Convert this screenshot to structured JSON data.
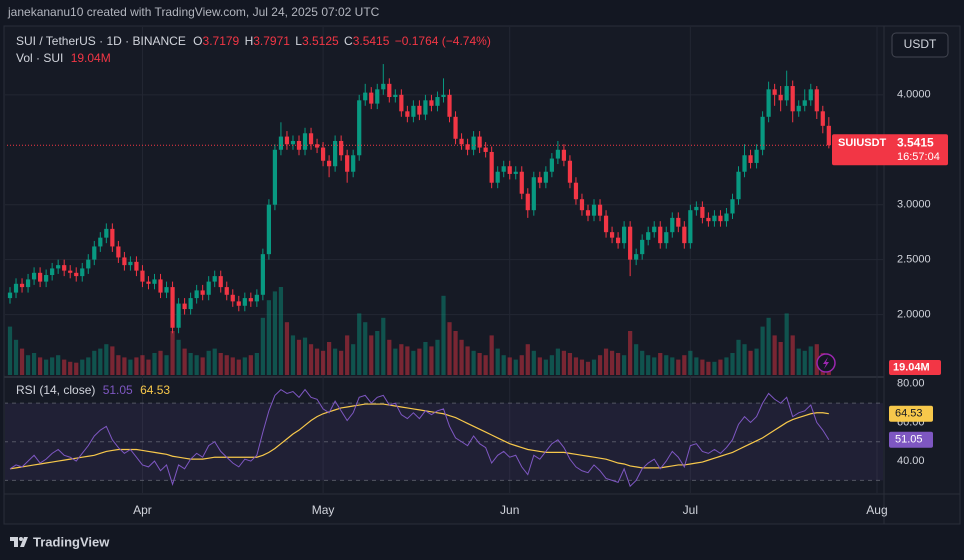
{
  "chart_data": {
    "type": "candlestick",
    "title": "janekananu10 created with TradingView.com, Jul 24, 2025 07:02 UTC",
    "symbol": "SUI / TetherUS · 1D · BINANCE",
    "ohlc_labels": [
      "O",
      "H",
      "L",
      "C"
    ],
    "change": "−0.1764",
    "change_pct": "(−4.74%)",
    "volume_title": "Vol · SUI",
    "last_volume_label": "19.04M",
    "ticker": "SUIUSDT",
    "countdown": "16:57:04",
    "currency": "USDT",
    "brand": "TradingView",
    "up_color": "#089981",
    "down_color": "#f23645",
    "grid": true,
    "xlim": [
      0,
      144.5
    ],
    "xticks": [
      {
        "value": 22,
        "label": "Apr"
      },
      {
        "value": 52,
        "label": "May"
      },
      {
        "value": 83,
        "label": "Jun"
      },
      {
        "value": 113,
        "label": "Jul"
      },
      {
        "value": 144,
        "label": "Aug"
      }
    ],
    "ylim": [
      1.45,
      4.59
    ],
    "yticks": [
      {
        "value": 4,
        "label": "4.0000"
      },
      {
        "value": 3,
        "label": "3.0000"
      },
      {
        "value": 2.5,
        "label": "2.5000"
      },
      {
        "value": 2,
        "label": "2.0000"
      }
    ],
    "x": [
      0,
      1,
      2,
      3,
      4,
      5,
      6,
      7,
      8,
      9,
      10,
      11,
      12,
      13,
      14,
      15,
      16,
      17,
      18,
      19,
      20,
      21,
      22,
      23,
      24,
      25,
      26,
      27,
      28,
      29,
      30,
      31,
      32,
      33,
      34,
      35,
      36,
      37,
      38,
      39,
      40,
      41,
      42,
      43,
      44,
      45,
      46,
      47,
      48,
      49,
      50,
      51,
      52,
      53,
      54,
      55,
      56,
      57,
      58,
      59,
      60,
      61,
      62,
      63,
      64,
      65,
      66,
      67,
      68,
      69,
      70,
      71,
      72,
      73,
      74,
      75,
      76,
      77,
      78,
      79,
      80,
      81,
      82,
      83,
      84,
      85,
      86,
      87,
      88,
      89,
      90,
      91,
      92,
      93,
      94,
      95,
      96,
      97,
      98,
      99,
      100,
      101,
      102,
      103,
      104,
      105,
      106,
      107,
      108,
      109,
      110,
      111,
      112,
      113,
      114,
      115,
      116,
      117,
      118,
      119,
      120,
      121,
      122,
      123,
      124,
      125,
      126,
      127,
      128,
      129,
      130,
      131,
      132,
      133,
      134,
      135,
      136
    ],
    "open": [
      2.15,
      2.2,
      2.28,
      2.25,
      2.32,
      2.38,
      2.3,
      2.36,
      2.42,
      2.45,
      2.4,
      2.38,
      2.35,
      2.42,
      2.5,
      2.62,
      2.7,
      2.78,
      2.62,
      2.52,
      2.45,
      2.48,
      2.4,
      2.3,
      2.28,
      2.32,
      2.2,
      2.25,
      1.88,
      2.1,
      2.05,
      2.15,
      2.22,
      2.18,
      2.3,
      2.35,
      2.25,
      2.18,
      2.12,
      2.08,
      2.15,
      2.12,
      2.18,
      2.55,
      3.0,
      3.5,
      3.62,
      3.55,
      3.58,
      3.5,
      3.65,
      3.55,
      3.52,
      3.4,
      3.35,
      3.58,
      3.45,
      3.3,
      3.45,
      3.95,
      4.02,
      3.92,
      4.05,
      4.1,
      3.98,
      4.0,
      3.85,
      3.8,
      3.9,
      3.82,
      3.95,
      3.9,
      3.98,
      4.0,
      3.8,
      3.6,
      3.55,
      3.5,
      3.62,
      3.52,
      3.48,
      3.2,
      3.3,
      3.35,
      3.28,
      3.3,
      3.1,
      2.95,
      3.25,
      3.2,
      3.3,
      3.42,
      3.5,
      3.4,
      3.2,
      3.05,
      2.95,
      2.9,
      3.0,
      2.9,
      2.75,
      2.7,
      2.65,
      2.8,
      2.5,
      2.55,
      2.68,
      2.75,
      2.8,
      2.65,
      2.75,
      2.88,
      2.8,
      2.65,
      2.95,
      2.98,
      2.88,
      2.85,
      2.9,
      2.85,
      2.92,
      3.05,
      3.3,
      3.45,
      3.38,
      3.5,
      3.8,
      4.05,
      4.0,
      3.95,
      4.08,
      3.85,
      3.9,
      3.95,
      4.05,
      3.85,
      3.7179
    ],
    "high": [
      2.25,
      2.33,
      2.33,
      2.37,
      2.43,
      2.43,
      2.41,
      2.47,
      2.5,
      2.5,
      2.45,
      2.43,
      2.47,
      2.55,
      2.67,
      2.75,
      2.83,
      2.83,
      2.67,
      2.57,
      2.53,
      2.53,
      2.45,
      2.35,
      2.37,
      2.37,
      2.3,
      2.3,
      2.15,
      2.15,
      2.2,
      2.27,
      2.27,
      2.35,
      2.4,
      2.4,
      2.3,
      2.23,
      2.17,
      2.2,
      2.2,
      2.23,
      2.6,
      3.05,
      3.55,
      3.75,
      3.67,
      3.63,
      3.63,
      3.7,
      3.7,
      3.6,
      3.57,
      3.45,
      3.63,
      3.63,
      3.5,
      3.5,
      4.0,
      4.1,
      4.07,
      4.1,
      4.28,
      4.15,
      4.05,
      4.05,
      3.9,
      3.95,
      3.95,
      4.0,
      4.0,
      4.03,
      4.15,
      4.05,
      3.85,
      3.65,
      3.6,
      3.67,
      3.67,
      3.57,
      3.53,
      3.35,
      3.4,
      3.4,
      3.35,
      3.35,
      3.15,
      3.3,
      3.3,
      3.35,
      3.47,
      3.58,
      3.55,
      3.45,
      3.25,
      3.1,
      3.0,
      3.05,
      3.05,
      2.95,
      2.8,
      2.75,
      2.85,
      2.85,
      2.6,
      2.73,
      2.8,
      2.85,
      2.85,
      2.8,
      2.93,
      2.93,
      2.85,
      3.0,
      3.03,
      3.03,
      2.93,
      2.95,
      2.95,
      2.97,
      3.1,
      3.35,
      3.55,
      3.5,
      3.55,
      3.85,
      4.12,
      4.1,
      4.08,
      4.22,
      4.13,
      3.95,
      4.05,
      4.1,
      4.08,
      3.9,
      3.7971
    ],
    "low": [
      2.1,
      2.15,
      2.2,
      2.2,
      2.27,
      2.25,
      2.25,
      2.31,
      2.37,
      2.35,
      2.33,
      2.3,
      2.3,
      2.37,
      2.45,
      2.57,
      2.65,
      2.57,
      2.47,
      2.4,
      2.4,
      2.35,
      2.25,
      2.23,
      2.23,
      2.15,
      2.15,
      1.83,
      1.83,
      2.0,
      2.0,
      2.1,
      2.13,
      2.13,
      2.25,
      2.2,
      2.13,
      2.07,
      2.03,
      2.03,
      2.07,
      2.07,
      2.13,
      2.5,
      2.95,
      3.45,
      3.5,
      3.5,
      3.45,
      3.45,
      3.5,
      3.47,
      3.35,
      3.25,
      3.3,
      3.4,
      3.2,
      3.25,
      3.4,
      3.9,
      3.87,
      3.87,
      4.0,
      3.93,
      3.93,
      3.8,
      3.75,
      3.75,
      3.77,
      3.77,
      3.85,
      3.85,
      3.93,
      3.75,
      3.55,
      3.5,
      3.45,
      3.45,
      3.47,
      3.43,
      3.15,
      3.15,
      3.25,
      3.23,
      3.23,
      3.05,
      2.88,
      2.9,
      3.15,
      3.15,
      3.25,
      3.37,
      3.35,
      3.15,
      3.0,
      2.9,
      2.85,
      2.85,
      2.85,
      2.7,
      2.65,
      2.6,
      2.6,
      2.35,
      2.45,
      2.5,
      2.63,
      2.7,
      2.6,
      2.6,
      2.7,
      2.75,
      2.6,
      2.6,
      2.9,
      2.83,
      2.8,
      2.8,
      2.8,
      2.8,
      2.87,
      3.0,
      3.25,
      3.33,
      3.33,
      3.45,
      3.75,
      3.9,
      3.85,
      3.9,
      3.75,
      3.8,
      3.85,
      3.9,
      3.78,
      3.65,
      3.5125
    ],
    "close": [
      2.2,
      2.28,
      2.25,
      2.32,
      2.38,
      2.3,
      2.36,
      2.42,
      2.45,
      2.4,
      2.38,
      2.35,
      2.42,
      2.5,
      2.62,
      2.7,
      2.78,
      2.62,
      2.52,
      2.45,
      2.48,
      2.4,
      2.3,
      2.28,
      2.32,
      2.2,
      2.25,
      1.88,
      2.1,
      2.05,
      2.15,
      2.22,
      2.18,
      2.3,
      2.35,
      2.25,
      2.18,
      2.12,
      2.08,
      2.15,
      2.12,
      2.18,
      2.55,
      3.0,
      3.5,
      3.62,
      3.55,
      3.58,
      3.5,
      3.65,
      3.55,
      3.52,
      3.4,
      3.35,
      3.58,
      3.45,
      3.3,
      3.45,
      3.95,
      4.02,
      3.92,
      4.05,
      4.1,
      3.98,
      4.0,
      3.85,
      3.8,
      3.9,
      3.82,
      3.95,
      3.9,
      3.98,
      4.0,
      3.8,
      3.6,
      3.55,
      3.5,
      3.62,
      3.52,
      3.48,
      3.2,
      3.3,
      3.35,
      3.28,
      3.3,
      3.1,
      2.95,
      3.25,
      3.2,
      3.3,
      3.42,
      3.5,
      3.4,
      3.2,
      3.05,
      2.95,
      2.9,
      3.0,
      2.9,
      2.75,
      2.7,
      2.65,
      2.8,
      2.5,
      2.55,
      2.68,
      2.75,
      2.8,
      2.65,
      2.75,
      2.88,
      2.8,
      2.65,
      2.95,
      2.98,
      2.88,
      2.85,
      2.9,
      2.85,
      2.92,
      3.05,
      3.3,
      3.45,
      3.38,
      3.5,
      3.8,
      4.05,
      4.0,
      3.95,
      4.08,
      3.85,
      3.9,
      3.95,
      4.05,
      3.85,
      3.7179,
      3.5415
    ],
    "volume": [
      110,
      80,
      60,
      45,
      50,
      40,
      35,
      40,
      45,
      35,
      30,
      28,
      35,
      40,
      55,
      60,
      70,
      65,
      45,
      40,
      35,
      40,
      45,
      35,
      50,
      55,
      45,
      100,
      80,
      60,
      50,
      45,
      40,
      55,
      60,
      50,
      45,
      40,
      35,
      40,
      45,
      50,
      130,
      170,
      190,
      200,
      120,
      90,
      80,
      85,
      70,
      60,
      55,
      75,
      60,
      55,
      90,
      70,
      140,
      120,
      90,
      100,
      130,
      80,
      60,
      70,
      65,
      55,
      60,
      75,
      65,
      80,
      180,
      120,
      100,
      80,
      65,
      55,
      50,
      45,
      90,
      60,
      45,
      40,
      35,
      45,
      70,
      55,
      40,
      35,
      45,
      60,
      55,
      50,
      40,
      35,
      30,
      35,
      45,
      60,
      55,
      50,
      45,
      100,
      70,
      55,
      45,
      40,
      50,
      45,
      40,
      35,
      45,
      55,
      40,
      35,
      30,
      30,
      35,
      40,
      50,
      80,
      70,
      55,
      60,
      110,
      130,
      90,
      75,
      140,
      90,
      60,
      55,
      65,
      70,
      50,
      19.04
    ],
    "rsi": {
      "name": "RSI (14, close)",
      "color": "#7e57c2",
      "ma_color": "#f7c84b",
      "ylim": [
        24,
        83
      ],
      "yticks": [
        {
          "value": 80,
          "label": "80.00"
        },
        {
          "value": 60,
          "label": "60.00"
        },
        {
          "value": 40,
          "label": "40.00"
        }
      ],
      "levels": [
        70,
        50,
        30
      ],
      "values": [
        36,
        38,
        37,
        40,
        43,
        39,
        41,
        44,
        46,
        43,
        42,
        40,
        44,
        48,
        53,
        56,
        58,
        51,
        47,
        44,
        46,
        42,
        38,
        37,
        40,
        35,
        38,
        28,
        38,
        36,
        41,
        44,
        42,
        48,
        50,
        45,
        42,
        39,
        37,
        41,
        40,
        43,
        55,
        66,
        74,
        77,
        75,
        76,
        73,
        77,
        73,
        72,
        67,
        65,
        71,
        66,
        61,
        65,
        73,
        74,
        70,
        73,
        74,
        69,
        70,
        64,
        62,
        65,
        62,
        66,
        64,
        66,
        67,
        58,
        52,
        50,
        48,
        53,
        49,
        47,
        39,
        43,
        45,
        42,
        43,
        37,
        33,
        43,
        41,
        45,
        49,
        51,
        47,
        41,
        37,
        35,
        34,
        38,
        35,
        31,
        30,
        29,
        36,
        27,
        30,
        36,
        39,
        41,
        36,
        40,
        45,
        42,
        37,
        48,
        49,
        45,
        44,
        46,
        44,
        47,
        51,
        59,
        63,
        60,
        63,
        70,
        75,
        72,
        70,
        73,
        63,
        65,
        66,
        69,
        60,
        56,
        51.05
      ],
      "ma_values": [
        36,
        36.5,
        37,
        37.5,
        38,
        38.5,
        39,
        39.5,
        40,
        40.5,
        41,
        41.5,
        42,
        42.5,
        43,
        44,
        45,
        45.5,
        46,
        46,
        46,
        46,
        45.5,
        45,
        44.5,
        44,
        43.5,
        42.5,
        42,
        41.5,
        41,
        41,
        41,
        41.5,
        42,
        42,
        42,
        42,
        42,
        42,
        42,
        42,
        43,
        44.5,
        46.5,
        49,
        51.5,
        54,
        56,
        58.5,
        61,
        63,
        64.5,
        65.5,
        66.5,
        67.5,
        68,
        68.5,
        69,
        69.5,
        69.5,
        69.5,
        69.5,
        69,
        68.5,
        68,
        67.5,
        67,
        66.5,
        66,
        65.5,
        65,
        64.5,
        63.5,
        62.5,
        61,
        59.5,
        58,
        56.5,
        55,
        53.5,
        52,
        50.5,
        49,
        48,
        47,
        46,
        45.5,
        45,
        44.5,
        44.5,
        44.5,
        44.5,
        44,
        43.5,
        43,
        42.5,
        42,
        41.5,
        41,
        40,
        39,
        38.5,
        37.5,
        37,
        36.5,
        36.5,
        36.5,
        36.5,
        37,
        37.5,
        38,
        38,
        38.5,
        39,
        39.5,
        40.5,
        41.5,
        42.5,
        43.5,
        44.5,
        46,
        47.5,
        49,
        50.5,
        52,
        54,
        56,
        58,
        60,
        61.5,
        62.5,
        63.5,
        64.5,
        65,
        65,
        64.53
      ]
    }
  }
}
